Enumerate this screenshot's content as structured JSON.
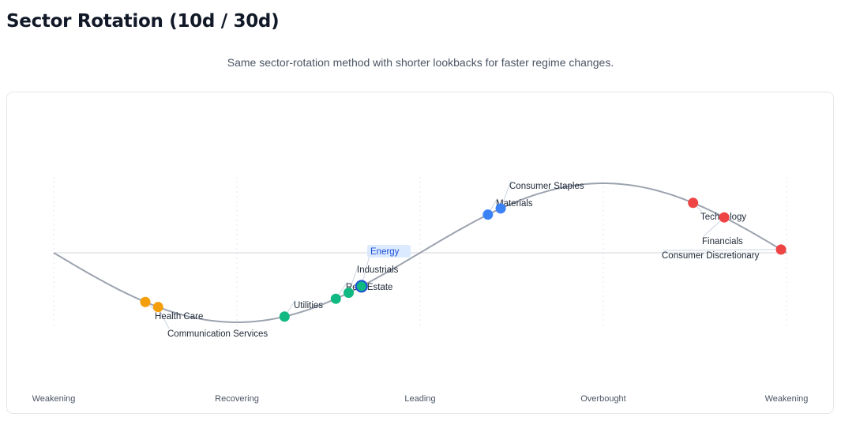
{
  "header": {
    "title": "Sector Rotation (10d / 30d)",
    "subtitle": "Same sector-rotation method with shorter lookbacks for faster regime changes."
  },
  "chart_data": {
    "type": "scatter",
    "title": "",
    "x_categories": [
      "Weakening",
      "Recovering",
      "Leading",
      "Overbought",
      "Weakening"
    ],
    "xlim": [
      0,
      4
    ],
    "curve": "sine cycle",
    "grid": "vertical dotted lines at each phase",
    "colors": {
      "weakening": "#f59e0b",
      "recovering": "#10b981",
      "leading": "#3b82f6",
      "overbought": "#ef4444",
      "curve": "#9ca3af",
      "highlight_stroke": "#1d4ed8"
    },
    "points": [
      {
        "name": "Health Care",
        "phase": 0.5,
        "group": "weakening"
      },
      {
        "name": "Communication Services",
        "phase": 0.57,
        "group": "weakening"
      },
      {
        "name": "Utilities",
        "phase": 1.26,
        "group": "recovering"
      },
      {
        "name": "Real Estate",
        "phase": 1.54,
        "group": "recovering"
      },
      {
        "name": "Industrials",
        "phase": 1.61,
        "group": "recovering"
      },
      {
        "name": "Energy",
        "phase": 1.68,
        "group": "recovering",
        "highlighted": true
      },
      {
        "name": "Materials",
        "phase": 2.37,
        "group": "leading"
      },
      {
        "name": "Consumer Staples",
        "phase": 2.44,
        "group": "leading"
      },
      {
        "name": "Technology",
        "phase": 3.49,
        "group": "overbought"
      },
      {
        "name": "Financials",
        "phase": 3.66,
        "group": "overbought"
      },
      {
        "name": "Consumer Discretionary",
        "phase": 3.97,
        "group": "overbought"
      }
    ]
  }
}
